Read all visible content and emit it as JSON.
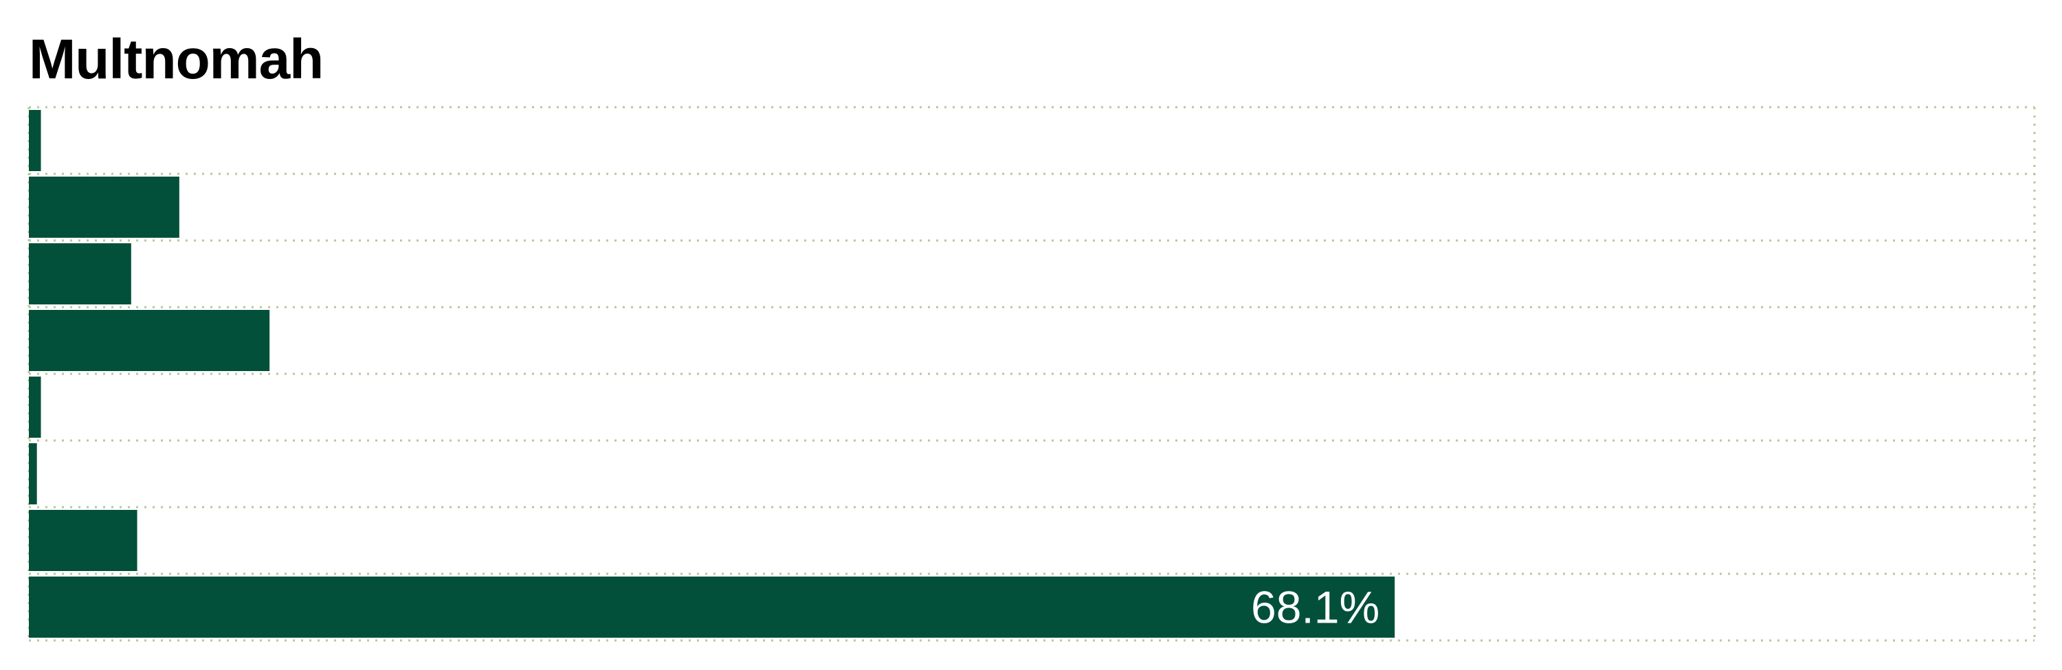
{
  "chart_data": {
    "type": "bar",
    "orientation": "horizontal",
    "title": "Multnomah",
    "xlabel": "",
    "ylabel": "",
    "categories": [
      "",
      "",
      "",
      "",
      "",
      "",
      "",
      ""
    ],
    "values": [
      0.6,
      7.5,
      5.1,
      12.0,
      0.6,
      0.4,
      5.4,
      68.1
    ],
    "data_labels": [
      "",
      "",
      "",
      "",
      "",
      "",
      "",
      "68.1%"
    ],
    "xlim": [
      0,
      100
    ],
    "grid": true,
    "legend": "none",
    "colors": {
      "bar": "#03503a",
      "grid": "#b8c79a",
      "label": "#ffffff",
      "title": "#000000"
    }
  }
}
